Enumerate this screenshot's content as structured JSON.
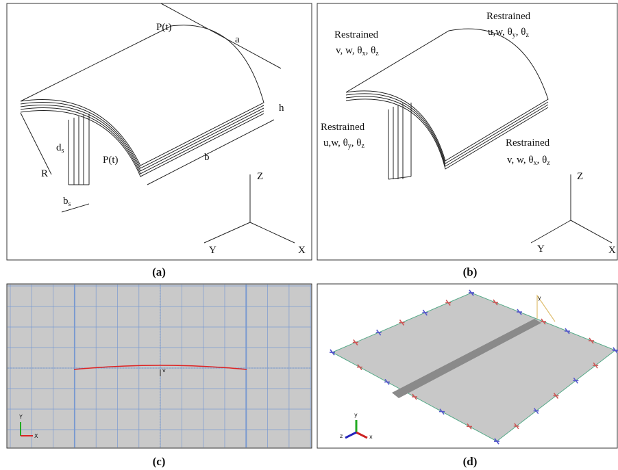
{
  "panel_a": {
    "load_top": "P(t)",
    "length": "a",
    "thickness": "h",
    "stiffener_depth": {
      "base": "d",
      "sub": "s"
    },
    "radius": "R",
    "load_side": "P(t)",
    "width": "b",
    "stiffener_width": {
      "base": "b",
      "sub": "s"
    },
    "axes": {
      "z": "Z",
      "y": "Y",
      "x": "X"
    }
  },
  "panel_b": {
    "boundaries": [
      {
        "label": "Restrained",
        "dofs": [
          "v, w, θ",
          "x",
          ", θ",
          "z"
        ]
      },
      {
        "label": "Restrained",
        "dofs": [
          "u,w, θ",
          "y",
          ", θ",
          "z"
        ]
      },
      {
        "label": "Restrained",
        "dofs": [
          "u,w, θ",
          "y",
          ", θ",
          "z"
        ]
      },
      {
        "label": "Restrained",
        "dofs": [
          "v, w, θ",
          "x",
          ", θ",
          "z"
        ]
      }
    ],
    "axes": {
      "z": "Z",
      "y": "Y",
      "x": "X"
    }
  },
  "panel_c": {
    "node_label": "v",
    "triad": {
      "y": "Y",
      "x": "X"
    }
  },
  "panel_d": {
    "axis_label": "y",
    "triad": {
      "y": "y",
      "z": "z",
      "x": "x"
    }
  },
  "captions": [
    "(a)",
    "(b)",
    "(c)",
    "(d)"
  ]
}
